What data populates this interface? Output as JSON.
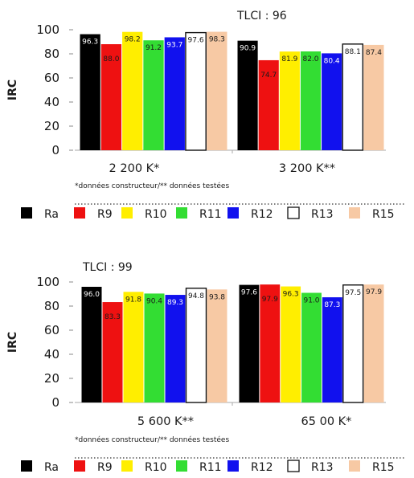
{
  "legend": {
    "items": [
      {
        "label": "Ra",
        "color": "#000000"
      },
      {
        "label": "R9",
        "color": "#ee1111"
      },
      {
        "label": "R10",
        "color": "#ffee00"
      },
      {
        "label": "R11",
        "color": "#33dd33"
      },
      {
        "label": "R12",
        "color": "#1111ee"
      },
      {
        "label": "R13",
        "color": "#ffffff"
      },
      {
        "label": "R15",
        "color": "#f7c9a4"
      }
    ]
  },
  "chart_data": [
    {
      "type": "bar",
      "title": "TLCI : 96",
      "ylabel": "IRC",
      "ylim": [
        0,
        100
      ],
      "yticks": [
        "0",
        "20",
        "40",
        "60",
        "80",
        "100"
      ],
      "categories": [
        "2 200 K*",
        "3 200 K**"
      ],
      "series": [
        {
          "name": "Ra",
          "values": [
            96.3,
            90.9
          ]
        },
        {
          "name": "R9",
          "values": [
            88.0,
            74.7
          ]
        },
        {
          "name": "R10",
          "values": [
            98.2,
            81.9
          ]
        },
        {
          "name": "R11",
          "values": [
            91.2,
            82.0
          ]
        },
        {
          "name": "R12",
          "values": [
            93.7,
            80.4
          ]
        },
        {
          "name": "R13",
          "values": [
            97.6,
            88.1
          ]
        },
        {
          "name": "R15",
          "values": [
            98.3,
            87.4
          ]
        }
      ],
      "note": "*données constructeur/** données testées"
    },
    {
      "type": "bar",
      "title": "TLCI : 99",
      "ylabel": "IRC",
      "ylim": [
        0,
        100
      ],
      "yticks": [
        "0",
        "20",
        "40",
        "60",
        "80",
        "100"
      ],
      "categories": [
        "5 600 K**",
        "65 00 K*"
      ],
      "series": [
        {
          "name": "Ra",
          "values": [
            96.0,
            97.6
          ]
        },
        {
          "name": "R9",
          "values": [
            83.3,
            97.9
          ]
        },
        {
          "name": "R10",
          "values": [
            91.8,
            96.3
          ]
        },
        {
          "name": "R11",
          "values": [
            90.4,
            91.0
          ]
        },
        {
          "name": "R12",
          "values": [
            89.3,
            87.3
          ]
        },
        {
          "name": "R13",
          "values": [
            94.8,
            97.5
          ]
        },
        {
          "name": "R15",
          "values": [
            93.8,
            97.9
          ]
        }
      ],
      "note": "*données constructeur/** données testées"
    }
  ]
}
